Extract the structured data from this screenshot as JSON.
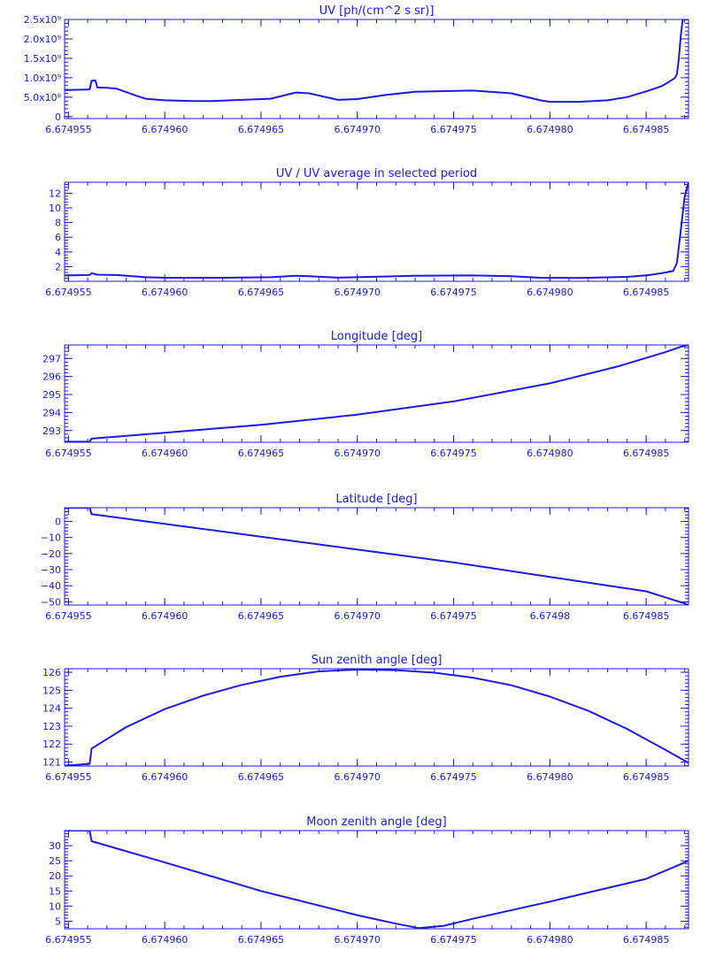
{
  "colors": {
    "foreground": "#1a1ae6",
    "background": "#ffffff"
  },
  "chart_data": [
    {
      "type": "line",
      "title": "UV [ph/(cm^2 s sr)]",
      "xlim": [
        6.6749548,
        6.6749872
      ],
      "ylim": [
        -50000000,
        2500000000
      ],
      "x_ticks": [
        6.674955,
        6.67496,
        6.674965,
        6.67497,
        6.674975,
        6.67498,
        6.674985
      ],
      "x_tick_labels": [
        "6.674955",
        "6.674960",
        "6.674965",
        "6.674970",
        "6.674975",
        "6.674980",
        "6.674985"
      ],
      "y_ticks": [
        0,
        500000000,
        1000000000,
        1500000000,
        2000000000,
        2500000000
      ],
      "y_tick_labels": [
        "0",
        "5.0x10⁸",
        "1.0x10⁹",
        "1.5x10⁹",
        "2.0x10⁹",
        "2.5x10⁹"
      ],
      "grid": false,
      "series": [
        {
          "x": [
            6.6749548,
            6.6749561,
            6.6749562,
            6.6749564,
            6.6749565,
            6.674957,
            6.6749575,
            6.6749585,
            6.674959,
            6.67496,
            6.6749615,
            6.6749625,
            6.6749655,
            6.6749668,
            6.6749675,
            6.674969,
            6.67497,
            6.6749715,
            6.674973,
            6.674976,
            6.674978,
            6.6749795,
            6.67498,
            6.6749815,
            6.674983,
            6.674984,
            6.674985,
            6.6749858,
            6.6749862,
            6.6749865,
            6.6749866,
            6.6749867,
            6.6749868,
            6.6749869,
            6.6749872
          ],
          "y": [
            680000000,
            700000000,
            920000000,
            930000000,
            750000000,
            740000000,
            720000000,
            540000000,
            460000000,
            420000000,
            400000000,
            400000000,
            460000000,
            620000000,
            600000000,
            430000000,
            450000000,
            560000000,
            640000000,
            670000000,
            600000000,
            420000000,
            380000000,
            380000000,
            420000000,
            500000000,
            650000000,
            780000000,
            900000000,
            1000000000,
            1100000000,
            1500000000,
            2100000000,
            2500000000,
            2500000000
          ]
        }
      ]
    },
    {
      "type": "line",
      "title": "UV / UV average in selected period",
      "xlim": [
        6.6749548,
        6.6749872
      ],
      "ylim": [
        0,
        13.5
      ],
      "x_ticks": [
        6.674955,
        6.67496,
        6.674965,
        6.67497,
        6.674975,
        6.67498,
        6.674985
      ],
      "x_tick_labels": [
        "6.674955",
        "6.674960",
        "6.674965",
        "6.674970",
        "6.674975",
        "6.674980",
        "6.674985"
      ],
      "y_ticks": [
        2,
        4,
        6,
        8,
        10,
        12
      ],
      "y_tick_labels": [
        "2",
        "4",
        "6",
        "8",
        "10",
        "12"
      ],
      "grid": false,
      "series": [
        {
          "x": [
            6.6749548,
            6.6749561,
            6.6749562,
            6.6749565,
            6.6749575,
            6.674959,
            6.67496,
            6.6749625,
            6.6749655,
            6.6749668,
            6.6749675,
            6.674969,
            6.674973,
            6.674976,
            6.674978,
            6.6749795,
            6.6749815,
            6.674984,
            6.674985,
            6.6749858,
            6.6749864,
            6.6749866,
            6.6749868,
            6.674987,
            6.6749872
          ],
          "y": [
            0.8,
            0.85,
            1.1,
            0.9,
            0.85,
            0.55,
            0.48,
            0.47,
            0.55,
            0.75,
            0.7,
            0.5,
            0.75,
            0.8,
            0.7,
            0.48,
            0.45,
            0.6,
            0.8,
            1.1,
            1.4,
            2.5,
            7.0,
            11.5,
            13.5
          ]
        }
      ]
    },
    {
      "type": "line",
      "title": "Longitude [deg]",
      "xlim": [
        6.6749548,
        6.6749872
      ],
      "ylim": [
        292.35,
        297.75
      ],
      "x_ticks": [
        6.674955,
        6.67496,
        6.674965,
        6.67497,
        6.674975,
        6.67498,
        6.674985
      ],
      "x_tick_labels": [
        "6.674955",
        "6.674960",
        "6.674965",
        "6.674970",
        "6.674975",
        "6.674980",
        "6.674985"
      ],
      "y_ticks": [
        293,
        294,
        295,
        296,
        297
      ],
      "y_tick_labels": [
        "293",
        "294",
        "295",
        "296",
        "297"
      ],
      "grid": false,
      "series": [
        {
          "x": [
            6.6749548,
            6.6749561,
            6.6749562,
            6.67496,
            6.674965,
            6.67497,
            6.674975,
            6.67498,
            6.6749835,
            6.674986,
            6.6749868,
            6.6749872
          ],
          "y": [
            292.38,
            292.38,
            292.55,
            292.88,
            293.32,
            293.88,
            294.62,
            295.62,
            296.55,
            297.35,
            297.65,
            297.75
          ]
        }
      ]
    },
    {
      "type": "line",
      "title": "Latitude [deg]",
      "xlim": [
        6.6749548,
        6.6749872
      ],
      "ylim": [
        -52,
        8.5
      ],
      "x_ticks": [
        6.674955,
        6.67496,
        6.674965,
        6.67497,
        6.674975,
        6.67498,
        6.674985
      ],
      "x_tick_labels": [
        "6.674955",
        "6.674960",
        "6.674965",
        "6.674970",
        "6.674975",
        "6.67498",
        "6.674985"
      ],
      "y_ticks": [
        0,
        -10,
        -20,
        -30,
        -40,
        -50
      ],
      "y_tick_labels": [
        "0",
        "−10",
        "−20",
        "−30",
        "−40",
        "−50"
      ],
      "grid": false,
      "series": [
        {
          "x": [
            6.6749548,
            6.6749561,
            6.6749562,
            6.67496,
            6.674965,
            6.67497,
            6.674975,
            6.67498,
            6.674985,
            6.674987,
            6.6749872
          ],
          "y": [
            8.5,
            8.5,
            4.5,
            -1.5,
            -9.5,
            -17.5,
            -25.5,
            -34.5,
            -43.5,
            -51.0,
            -52.0
          ]
        }
      ]
    },
    {
      "type": "line",
      "title": "Sun zenith angle [deg]",
      "xlim": [
        6.6749548,
        6.6749872
      ],
      "ylim": [
        120.78,
        126.2
      ],
      "x_ticks": [
        6.674955,
        6.67496,
        6.674965,
        6.67497,
        6.674975,
        6.67498,
        6.674985
      ],
      "x_tick_labels": [
        "6.674955",
        "6.674960",
        "6.674965",
        "6.674970",
        "6.674975",
        "6.674980",
        "6.674985"
      ],
      "y_ticks": [
        121,
        122,
        123,
        124,
        125,
        126
      ],
      "y_tick_labels": [
        "121",
        "122",
        "123",
        "124",
        "125",
        "126"
      ],
      "grid": false,
      "series": [
        {
          "x": [
            6.6749548,
            6.6749561,
            6.6749562,
            6.674958,
            6.67496,
            6.674962,
            6.674964,
            6.674966,
            6.674968,
            6.67497,
            6.674972,
            6.674974,
            6.674976,
            6.674978,
            6.67498,
            6.674982,
            6.674984,
            6.674986,
            6.6749872
          ],
          "y": [
            120.8,
            120.9,
            121.75,
            122.95,
            123.95,
            124.7,
            125.3,
            125.75,
            126.05,
            126.15,
            126.12,
            125.98,
            125.7,
            125.28,
            124.65,
            123.85,
            122.85,
            121.68,
            120.95
          ]
        }
      ]
    },
    {
      "type": "line",
      "title": "Moon zenith angle [deg]",
      "xlim": [
        6.6749548,
        6.6749872
      ],
      "ylim": [
        2.5,
        35
      ],
      "x_ticks": [
        6.674955,
        6.67496,
        6.674965,
        6.67497,
        6.674975,
        6.67498,
        6.674985
      ],
      "x_tick_labels": [
        "6.674955",
        "6.674960",
        "6.674965",
        "6.674970",
        "6.674975",
        "6.674980",
        "6.674985"
      ],
      "y_ticks": [
        5,
        10,
        15,
        20,
        25,
        30
      ],
      "y_tick_labels": [
        "5",
        "10",
        "15",
        "20",
        "25",
        "30"
      ],
      "grid": false,
      "series": [
        {
          "x": [
            6.6749548,
            6.6749561,
            6.6749562,
            6.67496,
            6.674965,
            6.67497,
            6.674972,
            6.6749732,
            6.6749745,
            6.674976,
            6.67498,
            6.674985,
            6.6749872
          ],
          "y": [
            35,
            35,
            31.5,
            24.5,
            15.0,
            7.0,
            4.2,
            2.7,
            3.5,
            5.8,
            11.5,
            19.0,
            25.0
          ]
        }
      ]
    }
  ]
}
